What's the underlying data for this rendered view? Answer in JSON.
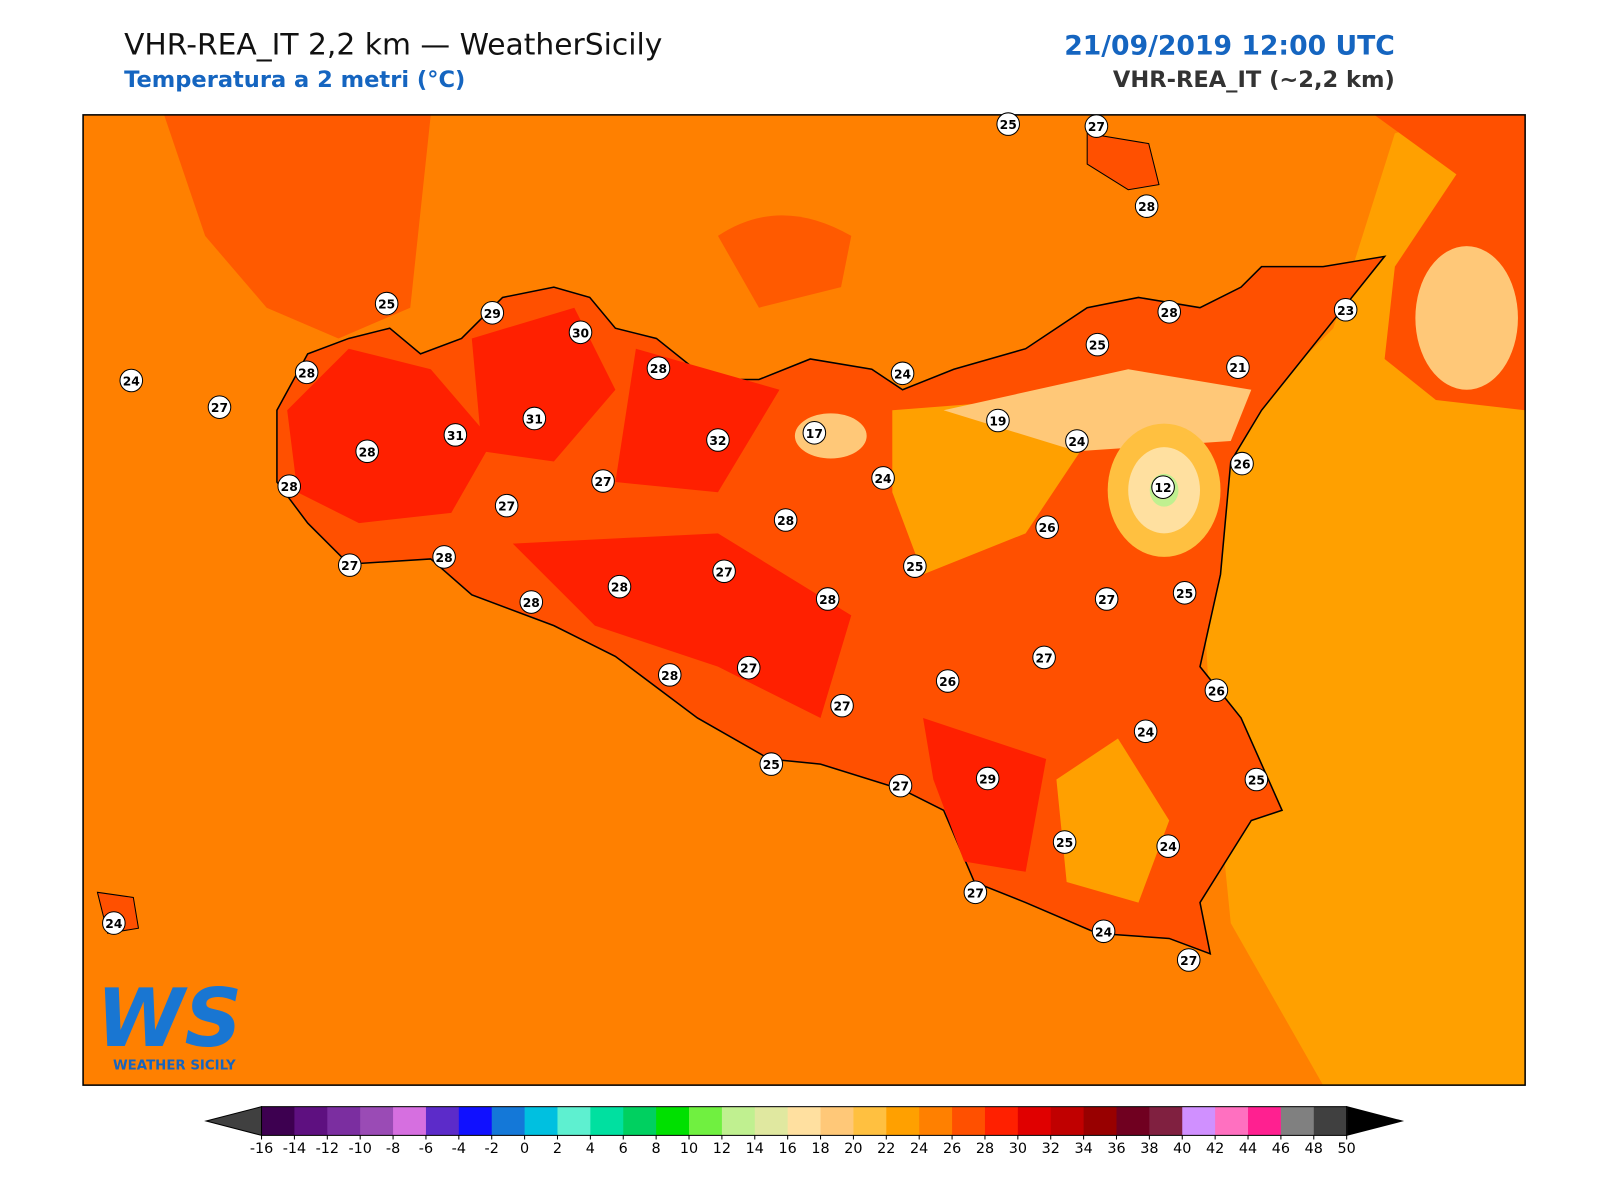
{
  "header": {
    "title": "VHR-REA_IT 2,2 km — WeatherSicily",
    "subtitle": "Temperatura a 2 metri (°C)",
    "date": "21/09/2019 12:00 UTC",
    "model": "VHR-REA_IT (~2,2 km)"
  },
  "stations": [
    25,
    27,
    28,
    25,
    29,
    30,
    28,
    24,
    27,
    28,
    24,
    28,
    25,
    23,
    21,
    31,
    31,
    28,
    32,
    17,
    19,
    24,
    26,
    28,
    27,
    24,
    12,
    27,
    28,
    26,
    27,
    28,
    27,
    25,
    28,
    28,
    28,
    27,
    25,
    27,
    28,
    27,
    26,
    26,
    27,
    24,
    25,
    27,
    29,
    25,
    25,
    24,
    27,
    24,
    24,
    27
  ],
  "colorbar": {
    "ticks": [
      -16,
      -14,
      -12,
      -10,
      -8,
      -6,
      -4,
      -2,
      0,
      2,
      4,
      6,
      8,
      10,
      12,
      14,
      16,
      18,
      20,
      22,
      24,
      26,
      28,
      30,
      32,
      34,
      36,
      38,
      40,
      42,
      44,
      46,
      48,
      50
    ],
    "colors": [
      "#3d0050",
      "#5e1080",
      "#7b2ea0",
      "#9a4bb5",
      "#d66fe0",
      "#5c2bc9",
      "#1010ff",
      "#1478d8",
      "#00c0e0",
      "#5ef0d0",
      "#00e0a0",
      "#00d060",
      "#00e000",
      "#70f040",
      "#c0f090",
      "#e0e8a0",
      "#ffe0a0",
      "#ffc878",
      "#ffc040",
      "#ffa000",
      "#ff8000",
      "#ff5000",
      "#ff2000",
      "#e00000",
      "#c00000",
      "#980000",
      "#700020",
      "#802040",
      "#d090ff",
      "#ff70c0",
      "#ff2090",
      "#808080",
      "#404040"
    ]
  },
  "logo": {
    "mark": "WS",
    "caption": "WEATHER SICILY"
  }
}
